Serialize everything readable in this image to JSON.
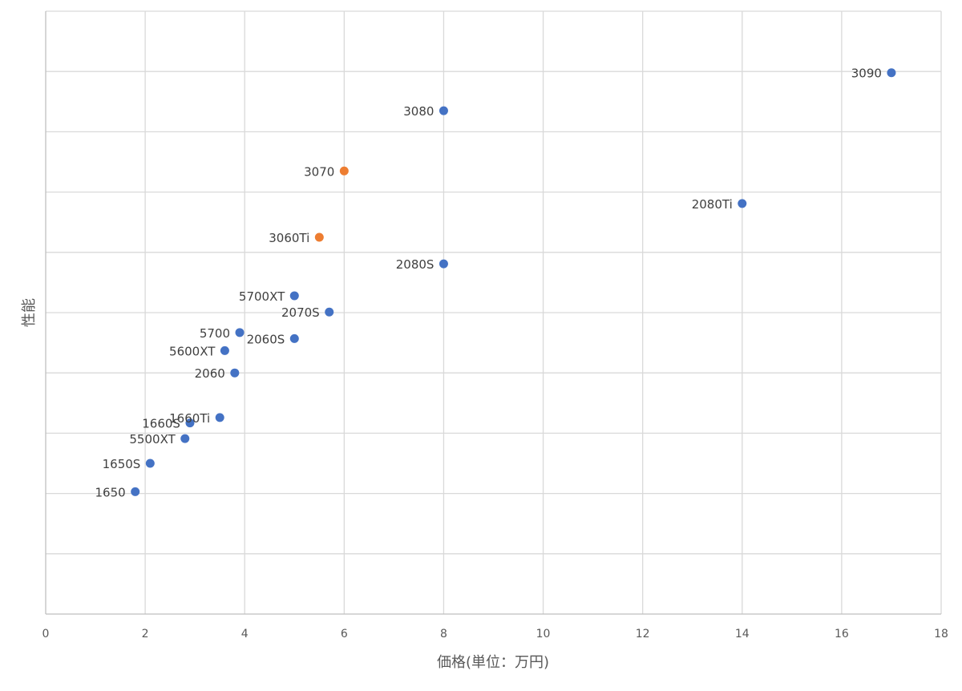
{
  "chart_data": {
    "type": "scatter",
    "title": "",
    "xlabel": "価格(単位：万円)",
    "ylabel": "性能",
    "xlim": [
      0,
      18
    ],
    "xticks": [
      "0",
      "2",
      "4",
      "6",
      "8",
      "10",
      "12",
      "14",
      "16",
      "18"
    ],
    "ylim": [
      0,
      10
    ],
    "y_tick_labels_shown": false,
    "grid": true,
    "legend": "none",
    "colors": {
      "default": "#4472c4",
      "highlight": "#ed7d31"
    },
    "points": [
      {
        "label": "3090",
        "x": 17.0,
        "y": 8.98,
        "highlight": false
      },
      {
        "label": "3080",
        "x": 8.0,
        "y": 8.35,
        "highlight": false
      },
      {
        "label": "3070",
        "x": 6.0,
        "y": 7.35,
        "highlight": true
      },
      {
        "label": "2080Ti",
        "x": 14.0,
        "y": 6.81,
        "highlight": false
      },
      {
        "label": "3060Ti",
        "x": 5.5,
        "y": 6.25,
        "highlight": true
      },
      {
        "label": "2080S",
        "x": 8.0,
        "y": 5.81,
        "highlight": false
      },
      {
        "label": "5700XT",
        "x": 5.0,
        "y": 5.28,
        "highlight": false
      },
      {
        "label": "2070S",
        "x": 5.7,
        "y": 5.01,
        "highlight": false
      },
      {
        "label": "5700",
        "x": 3.9,
        "y": 4.67,
        "highlight": false
      },
      {
        "label": "2060S",
        "x": 5.0,
        "y": 4.57,
        "highlight": false
      },
      {
        "label": "5600XT",
        "x": 3.6,
        "y": 4.37,
        "highlight": false
      },
      {
        "label": "2060",
        "x": 3.8,
        "y": 4.0,
        "highlight": false
      },
      {
        "label": "1660Ti",
        "x": 3.5,
        "y": 3.26,
        "highlight": false
      },
      {
        "label": "1660S",
        "x": 2.9,
        "y": 3.17,
        "highlight": false
      },
      {
        "label": "5500XT",
        "x": 2.8,
        "y": 2.91,
        "highlight": false
      },
      {
        "label": "1650S",
        "x": 2.1,
        "y": 2.5,
        "highlight": false
      },
      {
        "label": "1650",
        "x": 1.8,
        "y": 2.03,
        "highlight": false
      }
    ]
  }
}
